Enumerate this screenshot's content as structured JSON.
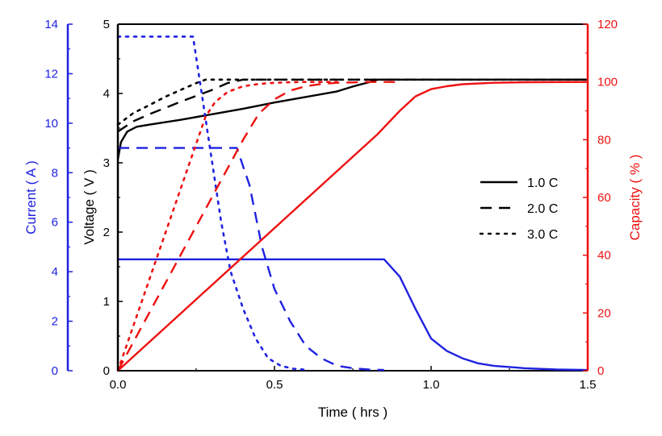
{
  "chart_data": {
    "type": "line",
    "xlabel": "Time ( hrs )",
    "xlim": [
      0,
      1.5
    ],
    "x_ticks": [
      "0.0",
      "0.5",
      "1.0",
      "1.5"
    ],
    "axes": {
      "current": {
        "label": "Current ( A )",
        "lim": [
          0,
          14
        ],
        "ticks": [
          "0",
          "2",
          "4",
          "6",
          "8",
          "10",
          "12",
          "14"
        ],
        "color": "#1f22e0"
      },
      "voltage": {
        "label": "Voltage ( V )",
        "lim": [
          0,
          5
        ],
        "ticks": [
          "0",
          "1",
          "2",
          "3",
          "4",
          "5"
        ],
        "color": "#000000"
      },
      "capacity": {
        "label": "Capacity ( % )",
        "lim": [
          0,
          120
        ],
        "ticks": [
          "0",
          "20",
          "40",
          "60",
          "80",
          "100",
          "120"
        ],
        "color": "#ee1111"
      }
    },
    "legend": {
      "placement": "center-right",
      "entries": [
        {
          "name": "1.0 C",
          "style": "solid"
        },
        {
          "name": "2.0 C",
          "style": "dashed"
        },
        {
          "name": "3.0 C",
          "style": "dotted"
        }
      ]
    },
    "series": [
      {
        "rate": "1.0 C",
        "quantity": "voltage",
        "axis": "voltage",
        "style": "solid",
        "color": "#000000",
        "points": [
          [
            0,
            3.05
          ],
          [
            0.01,
            3.3
          ],
          [
            0.03,
            3.45
          ],
          [
            0.06,
            3.52
          ],
          [
            0.1,
            3.55
          ],
          [
            0.2,
            3.62
          ],
          [
            0.3,
            3.7
          ],
          [
            0.4,
            3.78
          ],
          [
            0.5,
            3.87
          ],
          [
            0.6,
            3.95
          ],
          [
            0.7,
            4.03
          ],
          [
            0.75,
            4.1
          ],
          [
            0.8,
            4.16
          ],
          [
            0.83,
            4.2
          ],
          [
            1.5,
            4.2
          ]
        ]
      },
      {
        "rate": "2.0 C",
        "quantity": "voltage",
        "axis": "voltage",
        "style": "dashed",
        "color": "#000000",
        "points": [
          [
            0,
            3.45
          ],
          [
            0.05,
            3.6
          ],
          [
            0.1,
            3.7
          ],
          [
            0.2,
            3.88
          ],
          [
            0.3,
            4.05
          ],
          [
            0.35,
            4.15
          ],
          [
            0.4,
            4.2
          ],
          [
            1.5,
            4.2
          ]
        ]
      },
      {
        "rate": "3.0 C",
        "quantity": "voltage",
        "axis": "voltage",
        "style": "dotted",
        "color": "#000000",
        "points": [
          [
            0,
            3.55
          ],
          [
            0.05,
            3.72
          ],
          [
            0.1,
            3.83
          ],
          [
            0.15,
            3.95
          ],
          [
            0.2,
            4.05
          ],
          [
            0.25,
            4.15
          ],
          [
            0.28,
            4.2
          ],
          [
            1.5,
            4.2
          ]
        ]
      },
      {
        "rate": "1.0 C",
        "quantity": "current",
        "axis": "current",
        "style": "solid",
        "color": "#1f22e0",
        "points": [
          [
            0,
            4.5
          ],
          [
            0.85,
            4.5
          ],
          [
            0.9,
            3.8
          ],
          [
            0.95,
            2.5
          ],
          [
            1.0,
            1.3
          ],
          [
            1.05,
            0.8
          ],
          [
            1.1,
            0.5
          ],
          [
            1.15,
            0.3
          ],
          [
            1.2,
            0.2
          ],
          [
            1.3,
            0.1
          ],
          [
            1.4,
            0.05
          ],
          [
            1.5,
            0.03
          ]
        ]
      },
      {
        "rate": "2.0 C",
        "quantity": "current",
        "axis": "current",
        "style": "dashed",
        "color": "#1f22e0",
        "points": [
          [
            0,
            9.0
          ],
          [
            0.38,
            9.0
          ],
          [
            0.42,
            7.5
          ],
          [
            0.46,
            5.0
          ],
          [
            0.5,
            3.3
          ],
          [
            0.55,
            2.0
          ],
          [
            0.6,
            1.0
          ],
          [
            0.65,
            0.5
          ],
          [
            0.7,
            0.2
          ],
          [
            0.75,
            0.1
          ],
          [
            0.8,
            0.05
          ],
          [
            0.85,
            0.03
          ]
        ]
      },
      {
        "rate": "3.0 C",
        "quantity": "current",
        "axis": "current",
        "style": "dotted",
        "color": "#1f22e0",
        "points": [
          [
            0,
            13.5
          ],
          [
            0.24,
            13.5
          ],
          [
            0.27,
            11.0
          ],
          [
            0.3,
            8.5
          ],
          [
            0.33,
            6.0
          ],
          [
            0.36,
            4.0
          ],
          [
            0.4,
            2.5
          ],
          [
            0.44,
            1.3
          ],
          [
            0.48,
            0.5
          ],
          [
            0.52,
            0.2
          ],
          [
            0.56,
            0.08
          ],
          [
            0.6,
            0.04
          ]
        ]
      },
      {
        "rate": "1.0 C",
        "quantity": "capacity",
        "axis": "capacity",
        "style": "solid",
        "color": "#ee1111",
        "points": [
          [
            0,
            0
          ],
          [
            0.83,
            82
          ],
          [
            0.9,
            90
          ],
          [
            0.95,
            95
          ],
          [
            1.0,
            97.5
          ],
          [
            1.05,
            98.5
          ],
          [
            1.1,
            99.2
          ],
          [
            1.2,
            99.7
          ],
          [
            1.3,
            99.9
          ],
          [
            1.5,
            100
          ]
        ]
      },
      {
        "rate": "2.0 C",
        "quantity": "capacity",
        "axis": "capacity",
        "style": "dashed",
        "color": "#ee1111",
        "points": [
          [
            0,
            0
          ],
          [
            0.4,
            80
          ],
          [
            0.45,
            89
          ],
          [
            0.5,
            94
          ],
          [
            0.55,
            97
          ],
          [
            0.6,
            98.5
          ],
          [
            0.65,
            99.3
          ],
          [
            0.7,
            99.7
          ],
          [
            0.8,
            100
          ],
          [
            0.9,
            100
          ]
        ]
      },
      {
        "rate": "3.0 C",
        "quantity": "capacity",
        "axis": "capacity",
        "style": "dotted",
        "color": "#ee1111",
        "points": [
          [
            0,
            0
          ],
          [
            0.28,
            88
          ],
          [
            0.31,
            93
          ],
          [
            0.35,
            96.5
          ],
          [
            0.4,
            98.5
          ],
          [
            0.45,
            99.3
          ],
          [
            0.5,
            99.7
          ],
          [
            0.55,
            99.9
          ],
          [
            0.6,
            100
          ],
          [
            0.7,
            100
          ]
        ]
      }
    ]
  }
}
